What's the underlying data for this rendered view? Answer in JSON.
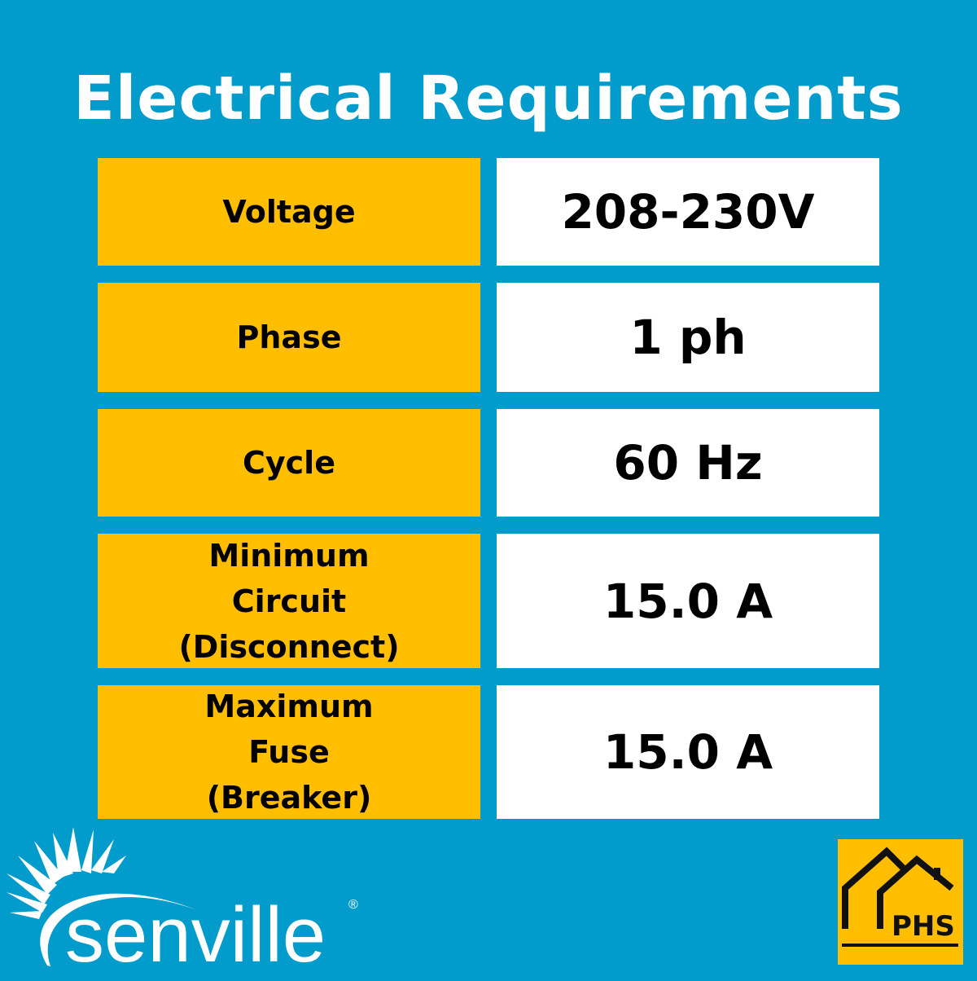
{
  "title": "Electrical Requirements",
  "rows": [
    {
      "label": "Voltage",
      "value": "208-230V"
    },
    {
      "label": "Phase",
      "value": "1 ph"
    },
    {
      "label": "Cycle",
      "value": "60 Hz"
    },
    {
      "label": "Minimum Circuit (Disconnect)",
      "value": "15.0 A"
    },
    {
      "label": "Maximum Fuse (Breaker)",
      "value": "15.0 A"
    }
  ],
  "brand": {
    "name": "senville",
    "registered": "®"
  },
  "badge": {
    "text": "PHS"
  },
  "colors": {
    "background": "#019bcc",
    "label_bg": "#ffbe00",
    "value_bg": "#ffffff"
  }
}
